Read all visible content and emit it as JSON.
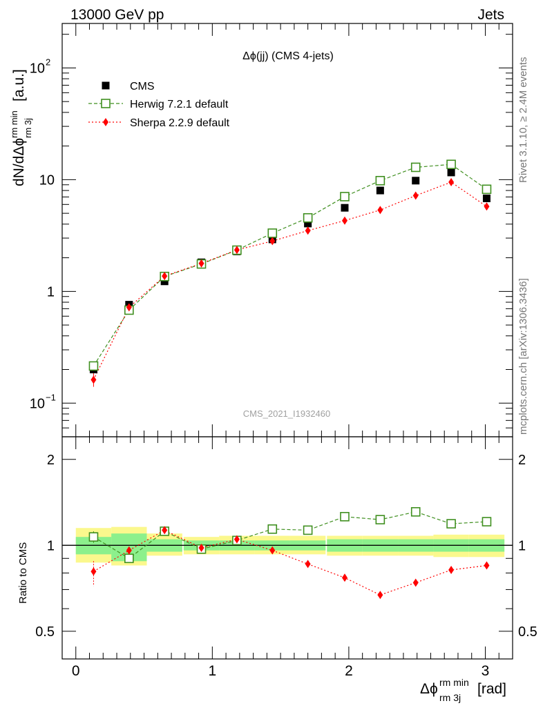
{
  "header": {
    "energy_label": "13000 GeV pp",
    "process_label": "Jets",
    "plot_title": "Δϕ(jj) (CMS 4-jets)",
    "analysis_id": "CMS_2021_I1932460",
    "rivet_label": "Rivet 3.1.10, ≥ 2.4M events",
    "source_label": "mcplots.cern.ch [arXiv:1306.3436]"
  },
  "axes": {
    "ylabel_main": "dN/dΔϕ",
    "ylabel_main_sup": "rm min",
    "ylabel_main_sub": "rm 3j",
    "ylabel_main_unit": "[a.u.]",
    "ylabel_ratio": "Ratio to CMS",
    "xlabel_main": "Δϕ",
    "xlabel_sup": "rm min",
    "xlabel_sub": "rm 3j",
    "xlabel_unit": "[rad]",
    "main_yticks": [
      {
        "base": "10",
        "exp": "−1"
      },
      {
        "base": "1",
        "exp": ""
      },
      {
        "base": "10",
        "exp": ""
      },
      {
        "base": "10",
        "exp": "2"
      }
    ],
    "ratio_yticks": [
      "0.5",
      "1",
      "2"
    ],
    "xticks": [
      "0",
      "1",
      "2",
      "3"
    ]
  },
  "colors": {
    "cms": "#000000",
    "herwig": "#3f8f1f",
    "sherpa": "#ff0000",
    "band_outer": "#fbf88d",
    "band_inner": "#8cf08c"
  },
  "chart_data": [
    {
      "type": "scatter",
      "xlim": [
        -0.1,
        3.2
      ],
      "ylim": [
        0.05,
        250
      ],
      "yscale": "log",
      "legend_position": "top-left",
      "x": [
        0.13,
        0.39,
        0.65,
        0.92,
        1.18,
        1.44,
        1.7,
        1.97,
        2.23,
        2.49,
        2.75,
        3.01
      ],
      "series": [
        {
          "name": "CMS",
          "values": [
            0.2,
            0.76,
            1.23,
            1.82,
            2.28,
            2.92,
            4.05,
            5.6,
            8.0,
            9.8,
            11.6,
            6.8
          ]
        },
        {
          "name": "Herwig 7.2.1 default",
          "values": [
            0.215,
            0.68,
            1.36,
            1.76,
            2.34,
            3.32,
            4.55,
            7.05,
            9.8,
            12.9,
            13.7,
            8.2
          ]
        },
        {
          "name": "Sherpa 2.2.9 default",
          "values": [
            0.162,
            0.72,
            1.37,
            1.78,
            2.35,
            2.82,
            3.5,
            4.3,
            5.35,
            7.2,
            9.5,
            5.75
          ]
        }
      ]
    },
    {
      "type": "scatter",
      "xlim": [
        -0.1,
        3.2
      ],
      "ylim": [
        0.4,
        2.4
      ],
      "yscale": "log",
      "ylabel": "Ratio to CMS",
      "x": [
        0.13,
        0.39,
        0.65,
        0.92,
        1.18,
        1.44,
        1.7,
        1.97,
        2.23,
        2.49,
        2.75,
        3.01
      ],
      "series": [
        {
          "name": "Herwig 7.2.1 default",
          "values": [
            1.07,
            0.9,
            1.12,
            0.97,
            1.04,
            1.14,
            1.13,
            1.26,
            1.23,
            1.31,
            1.19,
            1.21
          ]
        },
        {
          "name": "Sherpa 2.2.9 default",
          "values": [
            0.81,
            0.96,
            1.13,
            0.98,
            1.05,
            0.96,
            0.86,
            0.77,
            0.67,
            0.74,
            0.82,
            0.85
          ]
        }
      ],
      "band_inner": [
        [
          0.93,
          1.07
        ],
        [
          0.88,
          1.1
        ],
        [
          0.95,
          1.05
        ],
        [
          0.96,
          1.04
        ],
        [
          0.96,
          1.04
        ],
        [
          0.96,
          1.04
        ],
        [
          0.96,
          1.04
        ],
        [
          0.95,
          1.05
        ],
        [
          0.95,
          1.05
        ],
        [
          0.95,
          1.05
        ],
        [
          0.95,
          1.05
        ],
        [
          0.95,
          1.05
        ]
      ],
      "band_outer": [
        [
          0.87,
          1.15
        ],
        [
          0.85,
          1.16
        ],
        [
          0.92,
          1.1
        ],
        [
          0.93,
          1.07
        ],
        [
          0.93,
          1.08
        ],
        [
          0.93,
          1.08
        ],
        [
          0.93,
          1.08
        ],
        [
          0.92,
          1.08
        ],
        [
          0.92,
          1.08
        ],
        [
          0.92,
          1.08
        ],
        [
          0.91,
          1.09
        ],
        [
          0.91,
          1.09
        ]
      ]
    }
  ]
}
